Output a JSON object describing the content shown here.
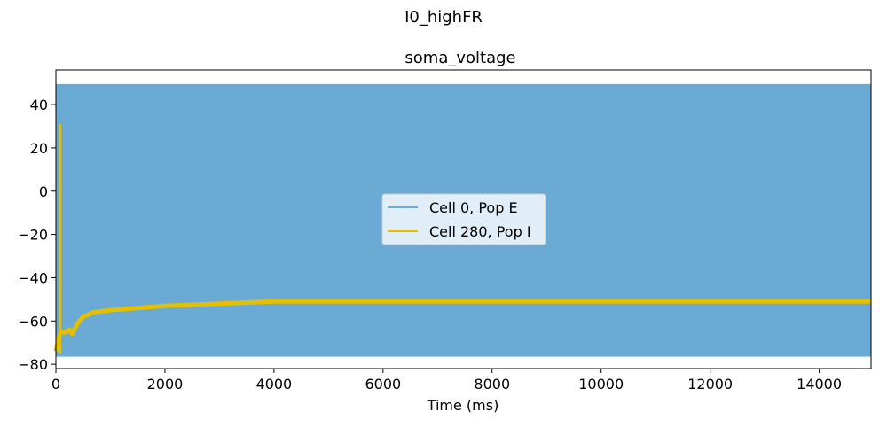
{
  "figure": {
    "suptitle": "I0_highFR"
  },
  "chart_data": {
    "type": "line",
    "title": "soma_voltage",
    "xlabel": "Time (ms)",
    "ylabel": "",
    "xlim": [
      0,
      14950
    ],
    "ylim": [
      -82,
      56
    ],
    "xticks": [
      0,
      2000,
      4000,
      6000,
      8000,
      10000,
      12000,
      14000
    ],
    "xtick_labels": [
      "0",
      "2000",
      "4000",
      "6000",
      "8000",
      "10000",
      "12000",
      "14000"
    ],
    "yticks": [
      -80,
      -60,
      -40,
      -20,
      0,
      20,
      40
    ],
    "ytick_labels": [
      "−80",
      "−60",
      "−40",
      "−20",
      "0",
      "20",
      "40"
    ],
    "grid": false,
    "legend_position": "center",
    "series": [
      {
        "name": "Cell 0, Pop E",
        "color": "#6baad4",
        "style": "dense oscillation (band between min and max)",
        "band": {
          "x": [
            0,
            14950
          ],
          "min": -76.5,
          "max": 49.5
        }
      },
      {
        "name": "Cell 280, Pop I",
        "color": "#e5c000",
        "spike": {
          "x": 80,
          "min": -75,
          "max": 31
        },
        "x": [
          0,
          50,
          90,
          150,
          250,
          300,
          400,
          500,
          700,
          1000,
          1500,
          2000,
          2500,
          3000,
          3500,
          4000,
          5000,
          6000,
          8000,
          10000,
          12000,
          14000,
          14950
        ],
        "values": [
          -74,
          -68,
          -65,
          -65.5,
          -64,
          -66,
          -61,
          -58,
          -56,
          -55,
          -54,
          -53,
          -52.5,
          -52,
          -51.5,
          -51,
          -51,
          -51,
          -51,
          -51,
          -51,
          -51,
          -51
        ]
      }
    ]
  }
}
